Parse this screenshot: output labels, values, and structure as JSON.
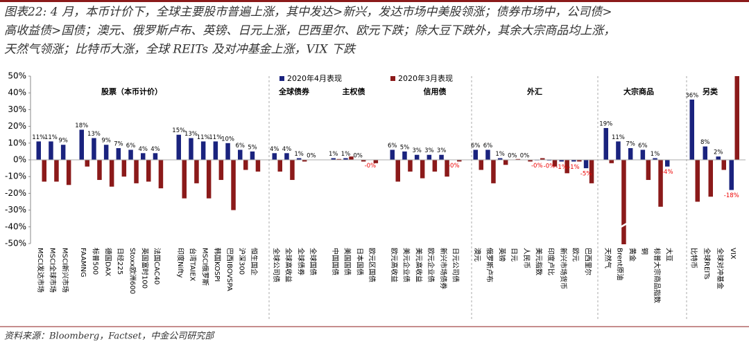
{
  "chart_data": {
    "type": "bar",
    "title_lines": [
      "图表22: 4 月，本币计价下，全球主要股市普遍上涨，其中发达>新兴，发达市场中美股领涨；债券市场中，公司债>",
      "高收益债>国债；澳元、俄罗斯卢布、英镑、日元上涨，巴西里尔、欧元下跌；除大豆下跌外，其余大宗商品均上涨，",
      "天然气领涨；比特币大涨，全球 REITs 及对冲基金上涨，VIX 下跌"
    ],
    "source": "资料来源：Bloomberg，Factset，中金公司研究部",
    "groups": [
      "股票（本币计价）",
      "全球债券",
      "主权债",
      "信用债",
      "外汇",
      "大宗商品",
      "另类"
    ],
    "categories": [
      "MSCI发达市场",
      "MSCI全球市场",
      "MSCI新兴市场",
      "FAAMNG",
      "标普500",
      "德国DAX",
      "日经225",
      "Stoxx欧洲600",
      "英国富时100",
      "法国CAC40",
      "印度Nifty",
      "台湾TAIEX",
      "MSCI俄罗斯",
      "韩国KOSPI",
      "巴西IBOVSPA",
      "沪深300",
      "恒生国企",
      "全球公司债",
      "全球高收益",
      "全球债券",
      "全球国债",
      "中国国债",
      "美国国债",
      "日本国债",
      "欧元区国债",
      "欧元高收益",
      "美元企业债",
      "美元高收益",
      "欧元企业债",
      "新兴市场债券",
      "日元公司债",
      "澳元",
      "俄罗斯卢布",
      "英镑",
      "日元",
      "人民币",
      "美元指数",
      "印度卢比",
      "新兴市场货币",
      "欧元",
      "巴西里尔",
      "天然气",
      "Brent原油",
      "黄金",
      "铜",
      "标普大宗商品指数",
      "大豆",
      "比特币",
      "全球REITs",
      "全球对冲基金",
      "VIX"
    ],
    "series": [
      {
        "name": "2020年4月表现",
        "color": "#1a237e",
        "values": [
          11,
          11,
          9,
          18,
          13,
          9,
          7,
          6,
          4,
          4,
          15,
          13,
          11,
          11,
          10,
          6,
          5,
          4,
          4,
          1,
          0,
          1,
          1,
          0,
          -0.2,
          6,
          5,
          3,
          3,
          3,
          -0.2,
          6,
          6,
          1,
          0,
          0,
          -0.3,
          -0.4,
          -1,
          -1,
          -5,
          19,
          11,
          7,
          6,
          1,
          -4,
          36,
          8,
          2,
          -18
        ],
        "value_labels": [
          "11%",
          "11%",
          "9%",
          "18%",
          "13%",
          "9%",
          "7%",
          "6%",
          "4%",
          "4%",
          "15%",
          "13%",
          "11%",
          "11%",
          "10%",
          "6%",
          "5%",
          "4%",
          "4%",
          "1%",
          "0%",
          "1%",
          "1%",
          "0%",
          "-0%",
          "6%",
          "5%",
          "3%",
          "3%",
          "3%",
          "-0%",
          "6%",
          "6%",
          "1%",
          "0%",
          "0%",
          "-0%",
          "-0%",
          "-1%",
          "-1%",
          "-5%",
          "19%",
          "11%",
          "7%",
          "6%",
          "1%",
          "-4%",
          "36%",
          "8%",
          "2%",
          "-18%"
        ]
      },
      {
        "name": "2020年3月表现",
        "color": "#8b1a1a",
        "values": [
          -13,
          -13,
          -15,
          -4,
          -12,
          -16,
          -10,
          -14,
          -13,
          -17,
          -23,
          -14,
          -23,
          -12,
          -30,
          -6,
          -7,
          -7,
          -12,
          -1,
          0,
          0.5,
          2,
          -1,
          -2,
          -13,
          -7,
          -11,
          -7,
          -10,
          -1,
          -6,
          -14,
          -3,
          0.5,
          -1,
          1,
          -4,
          -8,
          -1,
          -14,
          -2,
          -55,
          0,
          -12,
          -28,
          0,
          -25,
          -22,
          -6,
          50
        ]
      }
    ],
    "ylim": [
      -50,
      50
    ],
    "yticks": [
      {
        "value": -50,
        "label": "-50%"
      },
      {
        "value": -40,
        "label": "-40%"
      },
      {
        "value": -30,
        "label": "-30%"
      },
      {
        "value": -20,
        "label": "-20%"
      },
      {
        "value": -10,
        "label": "-10%"
      },
      {
        "value": 0,
        "label": "0%"
      },
      {
        "value": 10,
        "label": "10%"
      },
      {
        "value": 20,
        "label": "20%"
      },
      {
        "value": 30,
        "label": "30%"
      },
      {
        "value": 40,
        "label": "40%"
      },
      {
        "value": 50,
        "label": "50%"
      }
    ]
  }
}
